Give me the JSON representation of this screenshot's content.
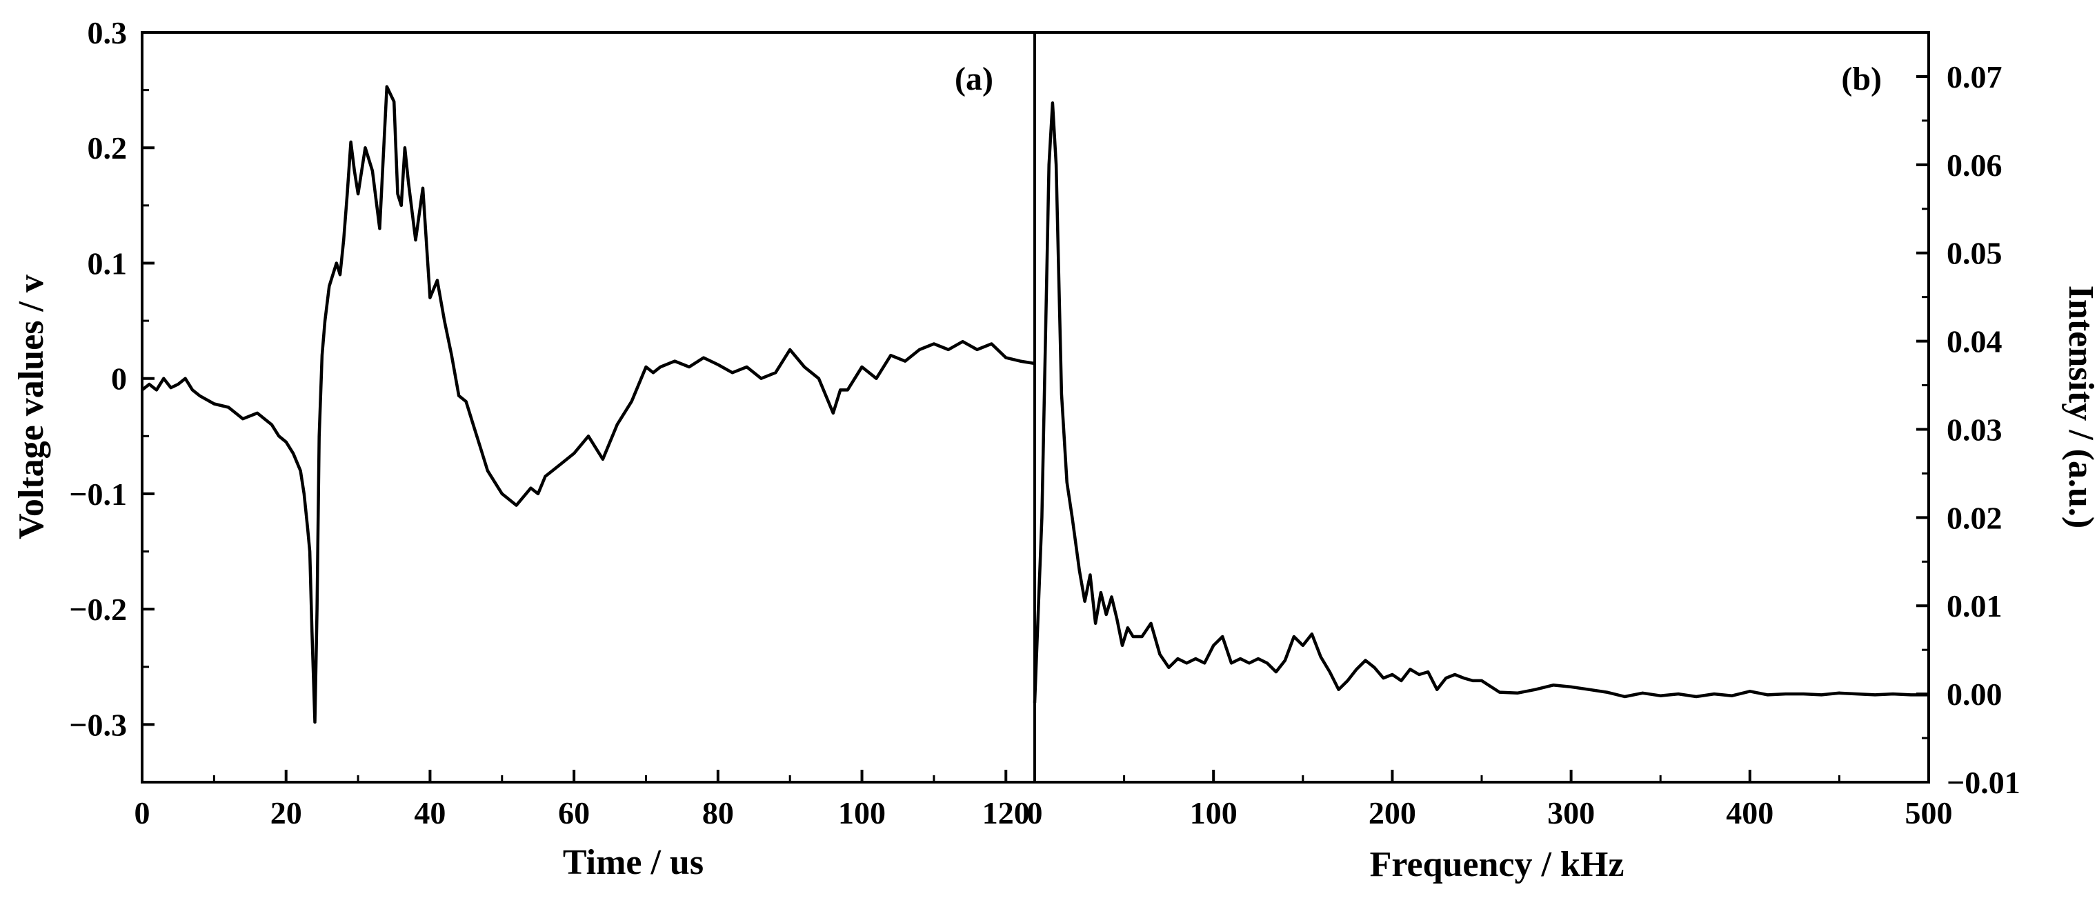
{
  "chart_data": [
    {
      "type": "line",
      "panel_label": "(a)",
      "xlabel": "Time / us",
      "ylabel": "Voltage values / v",
      "xlim": [
        0,
        124
      ],
      "ylim": [
        -0.35,
        0.3
      ],
      "x_ticks": [
        0,
        20,
        40,
        60,
        80,
        100,
        120
      ],
      "x_tick_labels": [
        "0",
        "20",
        "40",
        "60",
        "80",
        "100",
        "120"
      ],
      "y_ticks": [
        0.3,
        0.2,
        0.1,
        0,
        -0.1,
        -0.2,
        -0.3
      ],
      "y_tick_labels": [
        "0.3",
        "0.2",
        "0.1",
        "0",
        "−0.1",
        "−0.2",
        "−0.3"
      ],
      "line_color": "#000000",
      "grid": false,
      "series": [
        {
          "x": [
            0,
            1,
            2,
            3,
            4,
            5,
            6,
            7,
            8,
            10,
            12,
            14,
            16,
            18,
            19,
            20,
            21,
            22,
            22.5,
            23,
            23.3,
            23.6,
            24,
            24.3,
            24.6,
            25,
            25.4,
            26,
            27,
            27.5,
            28,
            28.5,
            29,
            29.5,
            30,
            31,
            32,
            33,
            34,
            35,
            35.5,
            36,
            36.5,
            37,
            38,
            39,
            40,
            41,
            42,
            43,
            44,
            45,
            46,
            47,
            48,
            50,
            52,
            54,
            55,
            56,
            58,
            60,
            62,
            64,
            66,
            68,
            70,
            71,
            72,
            74,
            76,
            78,
            80,
            82,
            84,
            86,
            88,
            90,
            92,
            94,
            96,
            97,
            98,
            100,
            102,
            104,
            106,
            108,
            110,
            112,
            114,
            116,
            118,
            120,
            122,
            124
          ],
          "y": [
            -0.01,
            -0.005,
            -0.01,
            0,
            -0.008,
            -0.005,
            0,
            -0.01,
            -0.015,
            -0.022,
            -0.025,
            -0.035,
            -0.03,
            -0.04,
            -0.05,
            -0.055,
            -0.065,
            -0.08,
            -0.1,
            -0.13,
            -0.15,
            -0.22,
            -0.298,
            -0.2,
            -0.05,
            0.02,
            0.05,
            0.08,
            0.1,
            0.09,
            0.12,
            0.16,
            0.205,
            0.18,
            0.16,
            0.2,
            0.18,
            0.13,
            0.253,
            0.24,
            0.16,
            0.15,
            0.2,
            0.17,
            0.12,
            0.165,
            0.07,
            0.085,
            0.05,
            0.02,
            -0.015,
            -0.02,
            -0.04,
            -0.06,
            -0.08,
            -0.1,
            -0.11,
            -0.095,
            -0.1,
            -0.085,
            -0.075,
            -0.065,
            -0.05,
            -0.07,
            -0.04,
            -0.02,
            0.01,
            0.005,
            0.01,
            0.015,
            0.01,
            0.018,
            0.012,
            0.005,
            0.01,
            0.0,
            0.005,
            0.025,
            0.01,
            0.0,
            -0.03,
            -0.01,
            -0.01,
            0.01,
            0.0,
            0.02,
            0.015,
            0.025,
            0.03,
            0.025,
            0.032,
            0.025,
            0.03,
            0.018,
            0.015,
            0.013
          ]
        }
      ]
    },
    {
      "type": "line",
      "panel_label": "(b)",
      "xlabel": "Frequency / kHz",
      "ylabel": "Intensity / (a.u.)",
      "xlim": [
        0,
        500
      ],
      "ylim": [
        -0.01,
        0.075
      ],
      "y_axis_side": "right",
      "x_ticks": [
        0,
        100,
        200,
        300,
        400,
        500
      ],
      "x_tick_labels": [
        "0",
        "100",
        "200",
        "300",
        "400",
        "500"
      ],
      "y_ticks": [
        0.07,
        0.06,
        0.05,
        0.04,
        0.03,
        0.02,
        0.01,
        0.0,
        -0.01
      ],
      "y_tick_labels": [
        "0.07",
        "0.06",
        "0.05",
        "0.04",
        "0.03",
        "0.02",
        "0.01",
        "0.00",
        "−0.01"
      ],
      "line_color": "#000000",
      "grid": false,
      "series": [
        {
          "x": [
            0,
            4,
            8,
            10,
            12,
            15,
            18,
            21,
            25,
            28,
            31,
            34,
            37,
            40,
            43,
            46,
            49,
            52,
            55,
            60,
            65,
            70,
            75,
            80,
            85,
            90,
            95,
            100,
            105,
            110,
            115,
            120,
            125,
            130,
            135,
            140,
            145,
            150,
            155,
            160,
            165,
            170,
            175,
            180,
            185,
            190,
            195,
            200,
            205,
            210,
            215,
            220,
            225,
            230,
            235,
            240,
            245,
            250,
            260,
            270,
            280,
            290,
            300,
            310,
            320,
            330,
            340,
            350,
            360,
            370,
            380,
            390,
            400,
            410,
            420,
            430,
            440,
            450,
            460,
            470,
            480,
            490,
            500
          ],
          "y": [
            -0.001,
            0.02,
            0.06,
            0.067,
            0.06,
            0.034,
            0.024,
            0.02,
            0.014,
            0.0105,
            0.0135,
            0.008,
            0.0115,
            0.009,
            0.011,
            0.0085,
            0.0055,
            0.0075,
            0.0065,
            0.0065,
            0.008,
            0.0045,
            0.003,
            0.004,
            0.0035,
            0.004,
            0.0035,
            0.0055,
            0.0065,
            0.0035,
            0.004,
            0.0035,
            0.004,
            0.0035,
            0.0025,
            0.0038,
            0.0065,
            0.0055,
            0.0068,
            0.0042,
            0.0025,
            0.0005,
            0.0015,
            0.0028,
            0.0038,
            0.003,
            0.0018,
            0.0022,
            0.0015,
            0.0028,
            0.0022,
            0.0025,
            0.0005,
            0.0018,
            0.0022,
            0.0018,
            0.0015,
            0.0015,
            0.0002,
            0.0001,
            0.0005,
            0.001,
            0.0008,
            0.0005,
            0.0002,
            -0.0003,
            0.0001,
            -0.0002,
            0.0,
            -0.0003,
            0.0,
            -0.0002,
            0.0003,
            -0.0001,
            0.0,
            0.0,
            -0.0001,
            0.0001,
            0.0,
            -0.0001,
            0.0,
            -0.0001,
            -0.0001
          ]
        }
      ]
    }
  ]
}
